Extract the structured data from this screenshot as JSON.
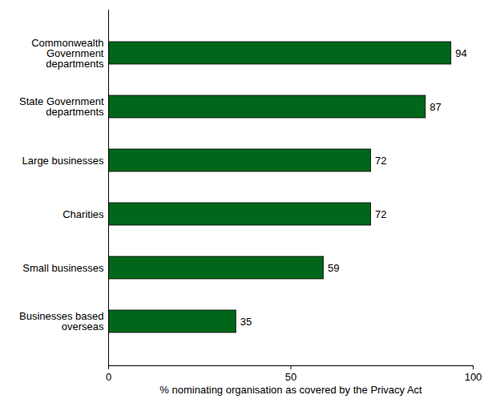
{
  "chart_data": {
    "type": "bar",
    "orientation": "horizontal",
    "categories": [
      "Commonwealth Government departments",
      "State Government departments",
      "Large businesses",
      "Charities",
      "Small businesses",
      "Businesses based overseas"
    ],
    "values": [
      94,
      87,
      72,
      72,
      59,
      35
    ],
    "color": "#006619",
    "xlabel": "% nominating organisation as covered by the Privacy Act",
    "xlim": [
      0,
      100
    ],
    "xticks": [
      0,
      50,
      100
    ],
    "data_labels": true,
    "grid": false
  }
}
